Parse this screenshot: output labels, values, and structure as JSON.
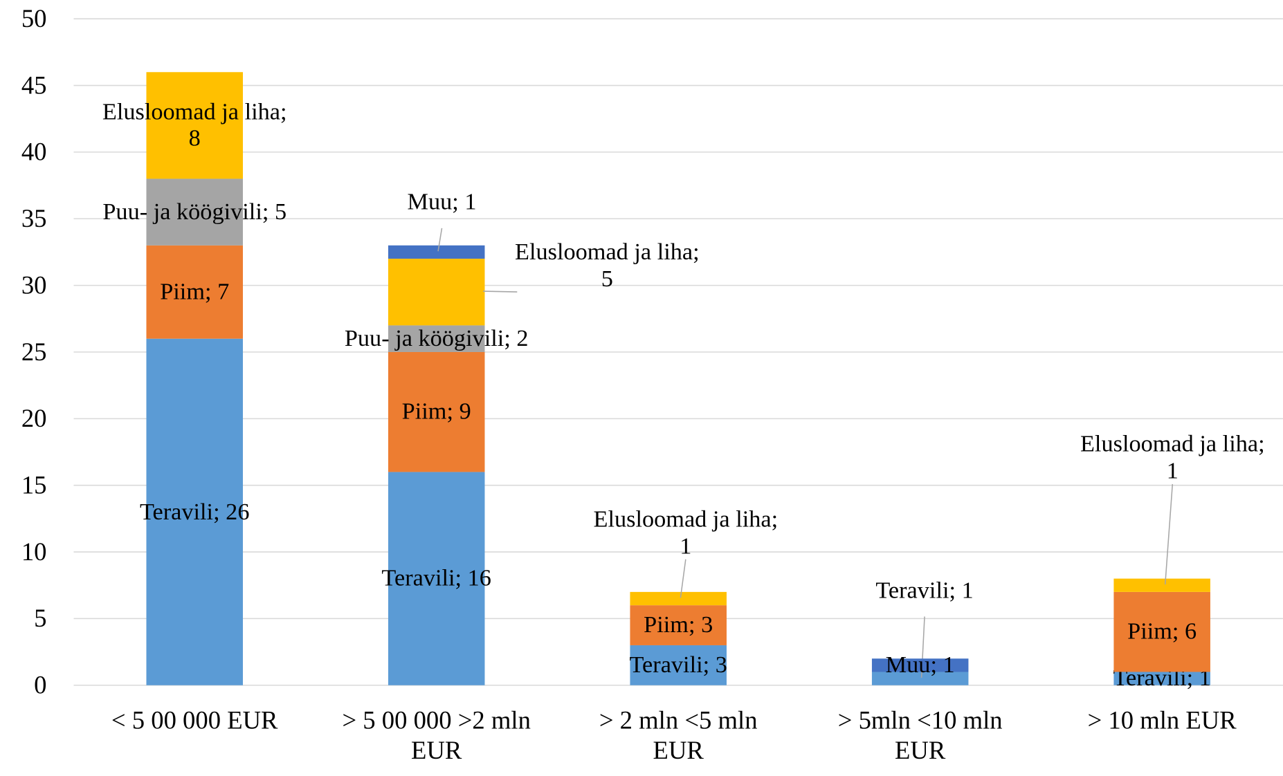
{
  "chart_data": {
    "type": "stacked_bar",
    "categories": [
      "< 5 00 000 EUR",
      "> 5 00 000 >2 mln EUR",
      "> 2 mln <5 mln EUR",
      "> 5mln <10 mln EUR",
      "> 10 mln EUR"
    ],
    "series": [
      {
        "name": "Teravili",
        "color": "#5b9bd5",
        "values": [
          26,
          16,
          3,
          1,
          1
        ],
        "value_labels": [
          "Teravili; 26",
          "Teravili; 16",
          "Teravili; 3",
          "Teravili; 1",
          "Teravili; 1"
        ]
      },
      {
        "name": "Piim",
        "color": "#ed7d31",
        "values": [
          7,
          9,
          3,
          0,
          6
        ],
        "value_labels": [
          "Piim; 7",
          "Piim; 9",
          "Piim; 3",
          null,
          "Piim; 6"
        ]
      },
      {
        "name": "Puu- ja köögivili",
        "color": "#a5a5a5",
        "values": [
          5,
          2,
          0,
          0,
          0
        ],
        "value_labels": [
          "Puu- ja köögivili; 5",
          "Puu- ja köögivili; 2",
          null,
          null,
          null
        ]
      },
      {
        "name": "Elusloomad ja liha",
        "color": "#ffc000",
        "values": [
          8,
          5,
          1,
          0,
          1
        ],
        "value_labels": [
          "Elusloomad ja liha; 8",
          "Elusloomad ja liha; 5",
          "Elusloomad ja liha; 1",
          null,
          "Elusloomad ja liha; 1"
        ]
      },
      {
        "name": "Muu",
        "color": "#4472c4",
        "values": [
          0,
          1,
          0,
          1,
          0
        ],
        "value_labels": [
          null,
          "Muu; 1",
          null,
          "Muu; 1",
          null
        ]
      }
    ],
    "ylim": [
      0,
      50
    ],
    "yticks": [
      0,
      5,
      10,
      15,
      20,
      25,
      30,
      35,
      40,
      45,
      50
    ],
    "grid": true
  }
}
